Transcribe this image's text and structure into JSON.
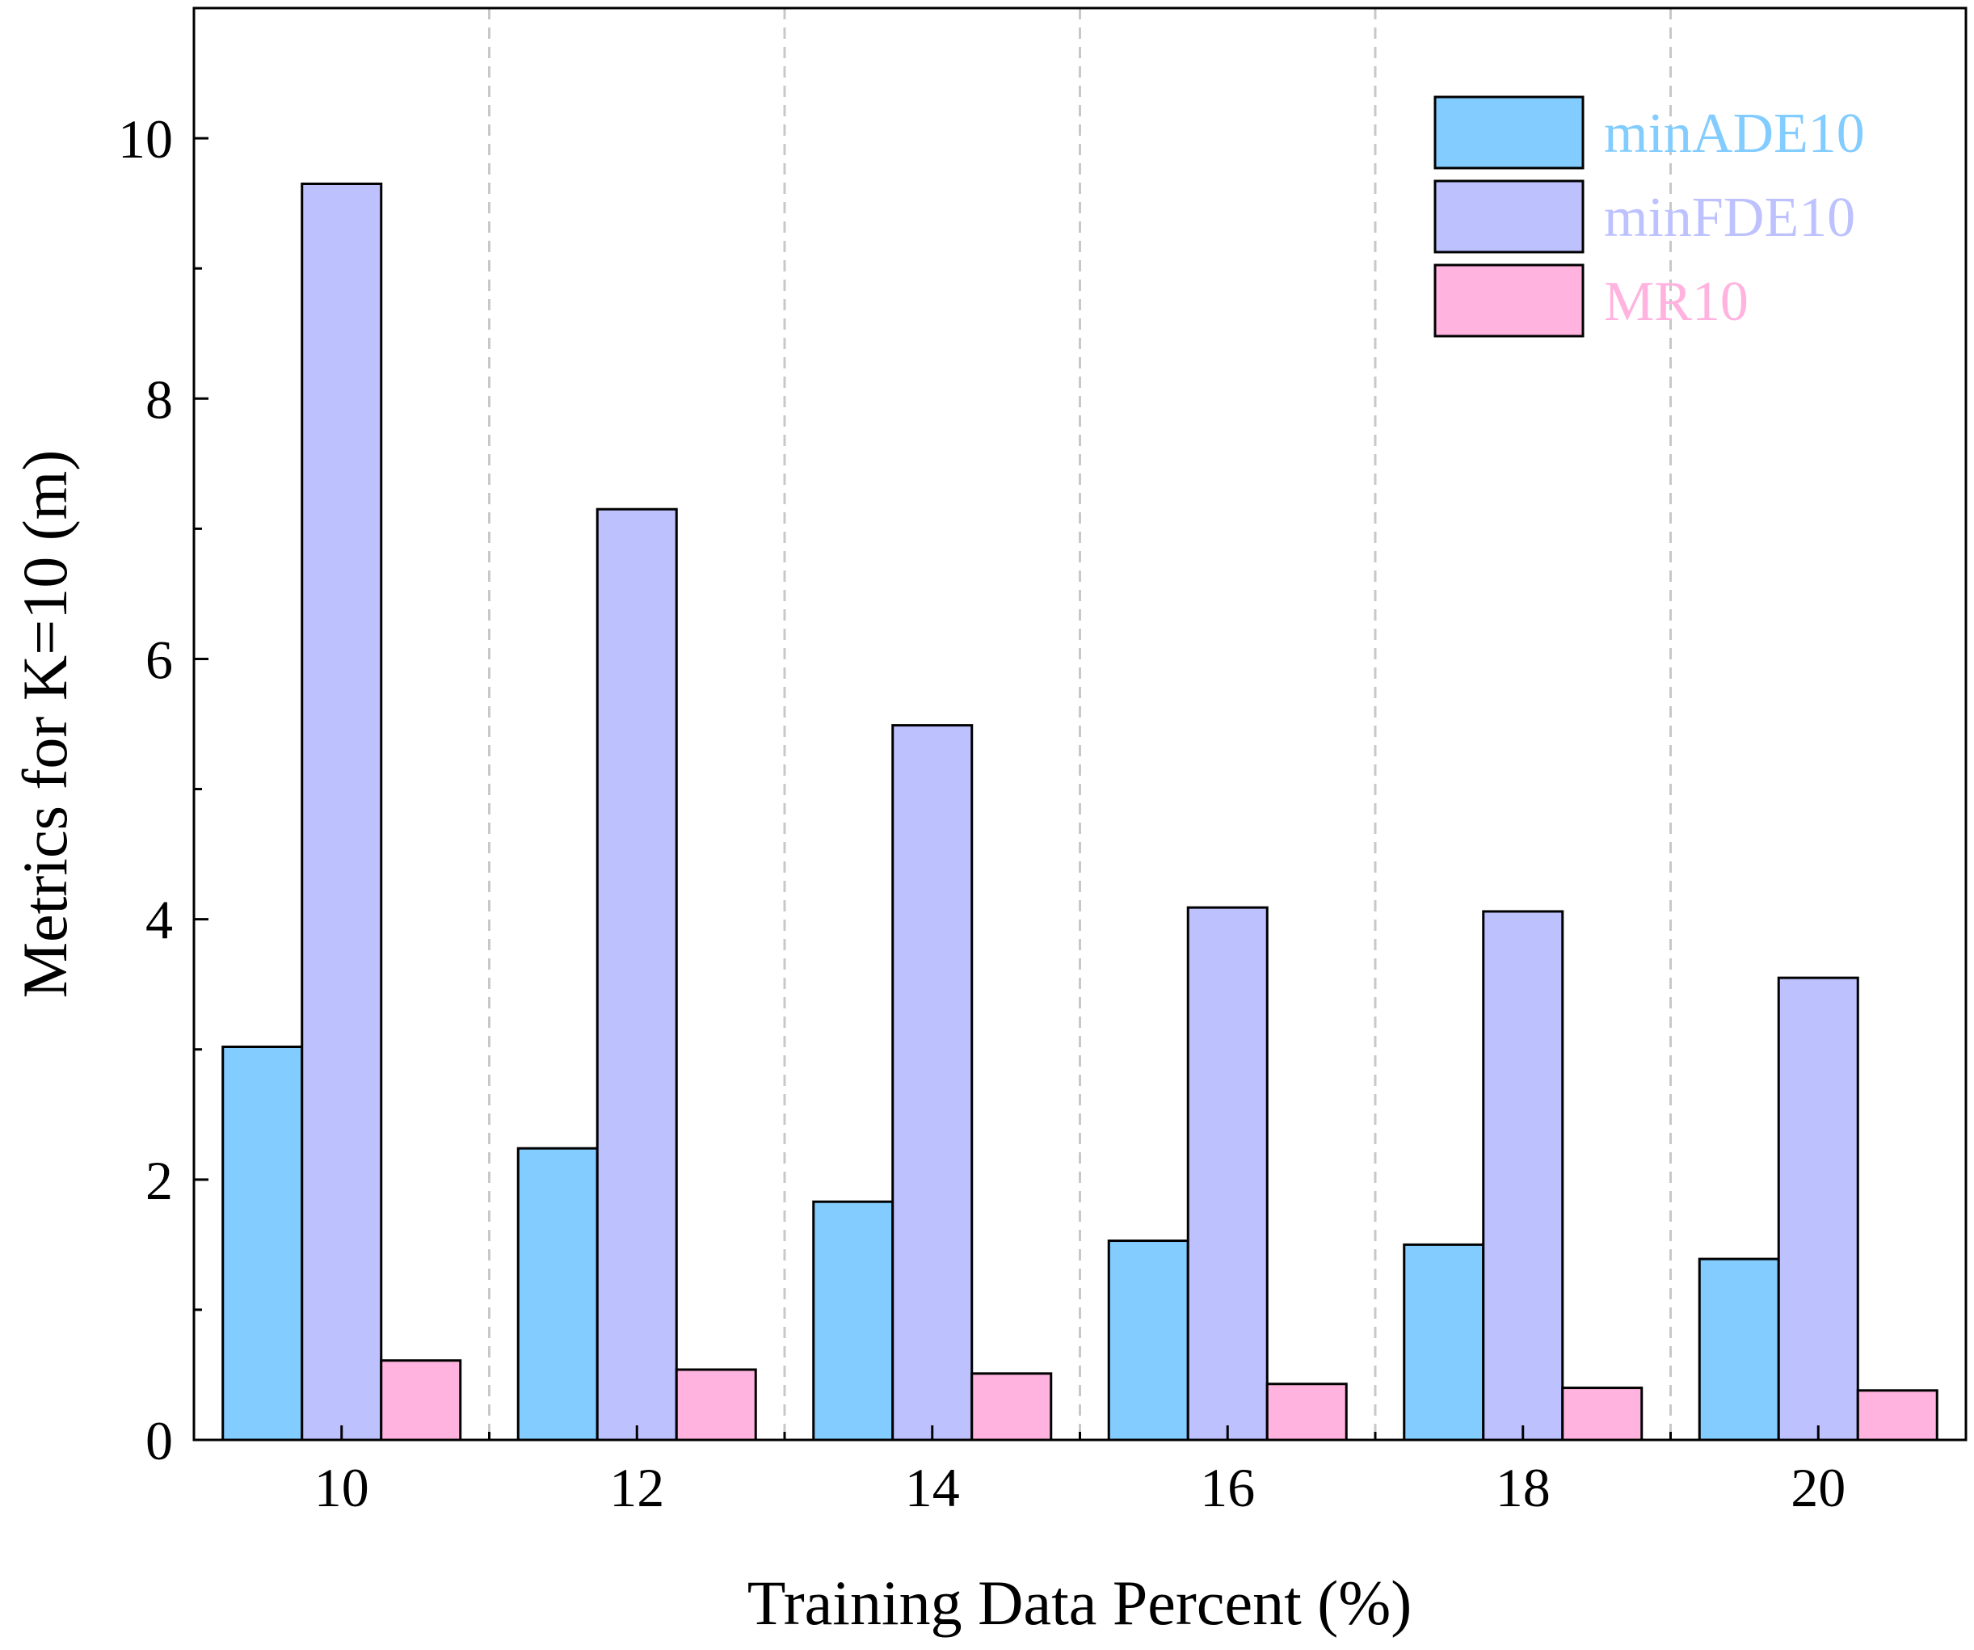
{
  "chart_data": {
    "type": "bar",
    "xlabel": "Training Data Percent (%)",
    "ylabel": "Metrics for K=10 (m)",
    "categories": [
      "10",
      "12",
      "14",
      "16",
      "18",
      "20"
    ],
    "series": [
      {
        "name": "minADE10",
        "color": "#82CCFF",
        "values": [
          3.02,
          2.24,
          1.83,
          1.53,
          1.5,
          1.39
        ]
      },
      {
        "name": "minFDE10",
        "color": "#BDC2FF",
        "values": [
          9.65,
          7.15,
          5.49,
          4.09,
          4.06,
          3.55
        ]
      },
      {
        "name": "MR10",
        "color": "#FFB3DE",
        "values": [
          0.61,
          0.54,
          0.51,
          0.43,
          0.4,
          0.38
        ]
      }
    ],
    "ylim": [
      0,
      11
    ],
    "yticks": [
      0,
      2,
      4,
      6,
      8,
      10
    ],
    "grid": "vertical dashed separators between groups",
    "legend": "top-right"
  }
}
